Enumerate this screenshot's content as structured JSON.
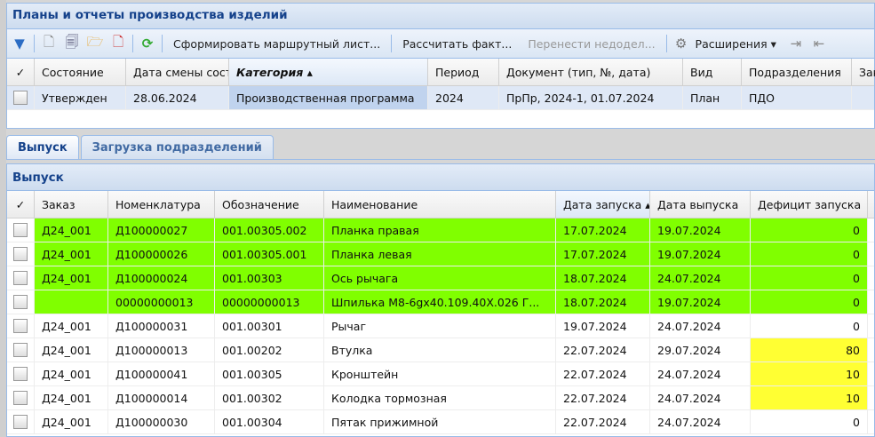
{
  "window": {
    "title": "Планы и отчеты производства изделий"
  },
  "toolbar": {
    "icons": [
      "filter-icon",
      "new-document-icon",
      "edit-document-icon",
      "open-folder-icon",
      "delete-document-icon",
      "refresh-icon"
    ],
    "route_sheet": "Сформировать маршрутный лист...",
    "calc_fact": "Рассчитать факт...",
    "transfer": "Перенести недодел...",
    "extensions": "Расширения ▾"
  },
  "plans": {
    "columns": [
      "Состояние",
      "Дата смены состояния",
      "Категория ▴",
      "Период",
      "Документ (тип, №, дата)",
      "Вид",
      "Подразделения",
      "Зак"
    ],
    "rows": [
      [
        "Утвержден",
        "28.06.2024",
        "Производственная программа",
        "2024",
        "ПрПр, 2024-1, 01.07.2024",
        "План",
        "ПДО",
        ""
      ]
    ]
  },
  "tabs": [
    {
      "label": "Выпуск",
      "active": true
    },
    {
      "label": "Загрузка подразделений",
      "active": false
    }
  ],
  "output": {
    "title": "Выпуск",
    "columns": [
      "Заказ",
      "Номенклатура",
      "Обозначение",
      "Наименование",
      "Дата запуска ▴",
      "Дата выпуска",
      "Дефицит запуска"
    ],
    "rows": [
      {
        "cells": [
          "Д24_001",
          "Д100000027",
          "001.00305.002",
          "Планка правая",
          "17.07.2024",
          "19.07.2024",
          "0"
        ],
        "highlight": "green"
      },
      {
        "cells": [
          "Д24_001",
          "Д100000026",
          "001.00305.001",
          "Планка левая",
          "17.07.2024",
          "19.07.2024",
          "0"
        ],
        "highlight": "green"
      },
      {
        "cells": [
          "Д24_001",
          "Д100000024",
          "001.00303",
          "Ось рычага",
          "18.07.2024",
          "24.07.2024",
          "0"
        ],
        "highlight": "green"
      },
      {
        "cells": [
          "",
          "00000000013",
          "00000000013",
          "Шпилька М8-6gx40.109.40X.026 Г...",
          "18.07.2024",
          "19.07.2024",
          "0"
        ],
        "highlight": "green"
      },
      {
        "cells": [
          "Д24_001",
          "Д100000031",
          "001.00301",
          "Рычаг",
          "19.07.2024",
          "24.07.2024",
          "0"
        ],
        "highlight": ""
      },
      {
        "cells": [
          "Д24_001",
          "Д100000013",
          "001.00202",
          "Втулка",
          "22.07.2024",
          "29.07.2024",
          "80"
        ],
        "highlight": "deficit"
      },
      {
        "cells": [
          "Д24_001",
          "Д100000041",
          "001.00305",
          "Кронштейн",
          "22.07.2024",
          "24.07.2024",
          "10"
        ],
        "highlight": "deficit"
      },
      {
        "cells": [
          "Д24_001",
          "Д100000014",
          "001.00302",
          "Колодка тормозная",
          "22.07.2024",
          "24.07.2024",
          "10"
        ],
        "highlight": "deficit"
      },
      {
        "cells": [
          "Д24_001",
          "Д100000030",
          "001.00304",
          "Пятак прижимной",
          "22.07.2024",
          "24.07.2024",
          "0"
        ],
        "highlight": ""
      }
    ]
  },
  "colors": {
    "green": "#80ff00",
    "deficit": "#ffff33"
  }
}
